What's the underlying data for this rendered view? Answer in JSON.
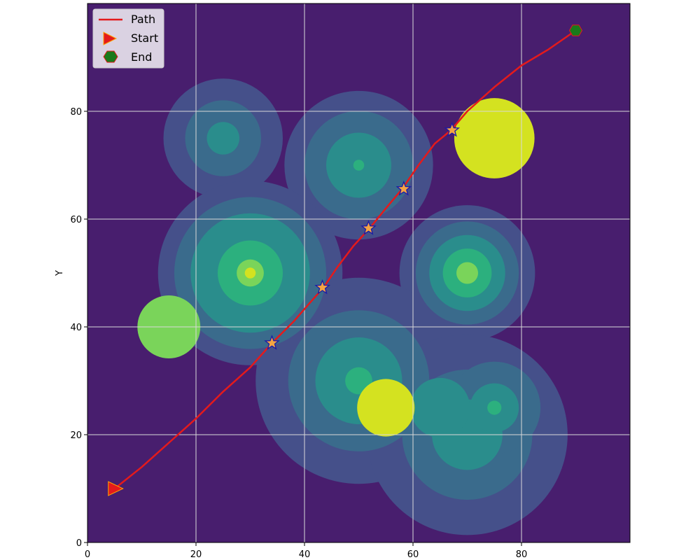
{
  "chart_data": {
    "type": "line",
    "title": "",
    "xlabel": "",
    "ylabel": "Y",
    "xlim": [
      0,
      100
    ],
    "ylim": [
      0,
      100
    ],
    "xticks": [
      0,
      20,
      40,
      60,
      80
    ],
    "yticks": [
      0,
      20,
      40,
      60,
      80
    ],
    "grid": true,
    "legend_position": "top-left",
    "legend": [
      {
        "label": "Path",
        "marker": "line",
        "color": "#e41a1c"
      },
      {
        "label": "Start",
        "marker": "triangle-right",
        "color": "#e41a1c"
      },
      {
        "label": "End",
        "marker": "hexagon",
        "color": "#1a7a1a"
      }
    ],
    "background_color": "#481e6e",
    "field_colors": [
      "#481e6e",
      "#45508a",
      "#3a6b8c",
      "#2a8d8c",
      "#2cb07e",
      "#7ad45a",
      "#d4e220"
    ],
    "path": {
      "x": [
        5,
        10,
        15,
        20,
        25,
        30,
        34,
        38,
        41,
        43.5,
        46,
        49,
        52,
        55,
        58,
        61,
        64,
        67,
        70,
        75,
        80,
        85,
        90
      ],
      "y": [
        10,
        14,
        18.5,
        23,
        28,
        32.5,
        37,
        41,
        44.5,
        47.3,
        51,
        55,
        58.3,
        62,
        65.6,
        70,
        74,
        76.5,
        80,
        84.5,
        88.5,
        91.5,
        95
      ]
    },
    "waypoints": {
      "x": [
        34,
        43.3,
        51.8,
        58.3,
        67.2
      ],
      "y": [
        37,
        47.3,
        58.3,
        65.6,
        76.5
      ]
    },
    "start": {
      "x": 5,
      "y": 10
    },
    "end": {
      "x": 90,
      "y": 95
    },
    "obstacles": [
      {
        "x": 25,
        "y": 75,
        "radii": [
          11,
          7,
          3
        ],
        "levels": [
          1,
          2,
          3
        ]
      },
      {
        "x": 50,
        "y": 70,
        "radii": [
          13.7,
          10,
          6,
          1
        ],
        "levels": [
          1,
          2,
          3,
          4
        ]
      },
      {
        "x": 30,
        "y": 50,
        "radii": [
          17,
          14,
          11,
          6,
          2.5,
          1
        ],
        "levels": [
          1,
          2,
          3,
          4,
          5,
          6
        ]
      },
      {
        "x": 70,
        "y": 50,
        "radii": [
          12.5,
          9.5,
          7,
          4.5,
          2
        ],
        "levels": [
          1,
          2,
          3,
          4,
          5
        ]
      },
      {
        "x": 50,
        "y": 30,
        "radii": [
          19,
          13,
          8,
          2.5
        ],
        "levels": [
          1,
          2,
          3,
          4
        ]
      },
      {
        "x": 70,
        "y": 20,
        "radii": [
          18.5,
          12,
          6.5
        ],
        "levels": [
          1,
          2,
          3
        ]
      },
      {
        "x": 75,
        "y": 25,
        "radii": [
          8.5,
          4.5,
          1.3
        ],
        "levels": [
          2,
          3,
          4
        ]
      },
      {
        "x": 65,
        "y": 25,
        "radii": [
          5.5
        ],
        "levels": [
          3
        ]
      },
      {
        "x": 15,
        "y": 40,
        "radii": [
          5.8
        ],
        "levels": [
          5
        ]
      },
      {
        "x": 55,
        "y": 25,
        "radii": [
          5.3
        ],
        "levels": [
          6
        ]
      },
      {
        "x": 75,
        "y": 75,
        "radii": [
          7.4
        ],
        "levels": [
          6
        ]
      }
    ]
  }
}
